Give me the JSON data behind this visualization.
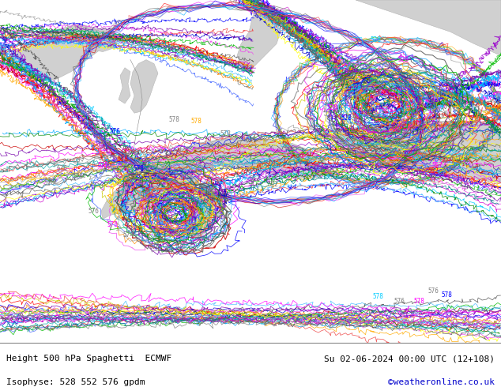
{
  "title_left_line1": "Height 500 hPa Spaghetti  ECMWF",
  "title_left_line2": "Isophyse: 528 552 576 gpdm",
  "title_right_line1": "Su 02-06-2024 00:00 UTC (12+108)",
  "title_right_line2": "©weatheronline.co.uk",
  "title_right_line2_color": "#0000cc",
  "text_color": "#000000",
  "fig_width": 6.34,
  "fig_height": 4.9,
  "dpi": 100,
  "map_bg": "#c8f0b0",
  "land_color": "#d0d0d0",
  "footer_bg": "#ffffff",
  "ensemble_colors": [
    "#606060",
    "#808080",
    "#a0a0a0",
    "#505050",
    "#ff00ff",
    "#cc00cc",
    "#ee44ee",
    "#ff0000",
    "#cc0000",
    "#ee4444",
    "#0000ff",
    "#0000cc",
    "#4466ff",
    "#00aaff",
    "#00ccff",
    "#44bbff",
    "#ff8800",
    "#ffaa00",
    "#00bb00",
    "#008800",
    "#9900cc",
    "#7700aa",
    "#00aaaa",
    "#008888",
    "#ffff00",
    "#cccc00"
  ],
  "grey_color": "#606060",
  "lw_thin": 0.55,
  "lw_med": 0.75,
  "lw_thick": 1.0
}
